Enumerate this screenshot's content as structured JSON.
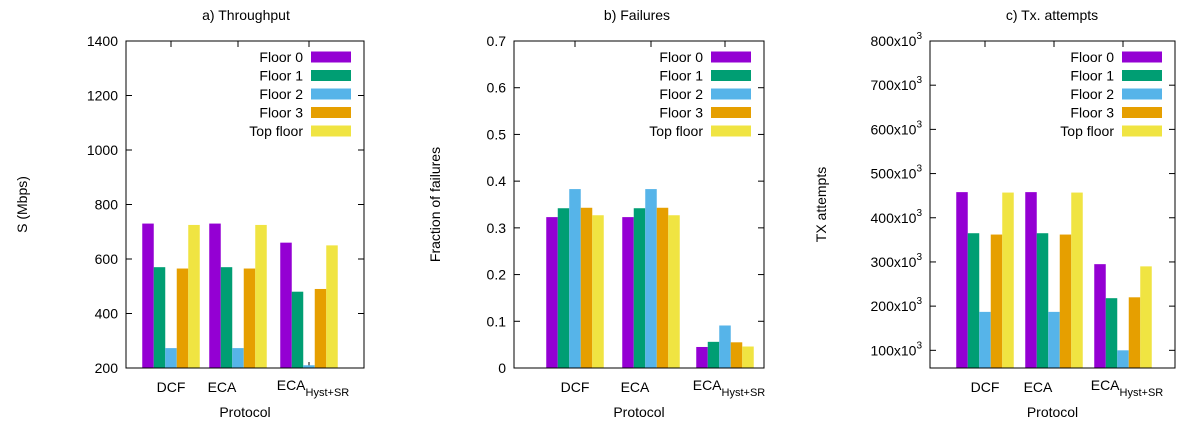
{
  "chart_data": [
    {
      "type": "bar",
      "title": "a) Throughput",
      "xlabel": "Protocol",
      "ylabel": "S (Mbps)",
      "ylim": [
        200,
        1400
      ],
      "yticks": [
        "200",
        "400",
        "600",
        "800",
        "1000",
        "1200",
        "1400"
      ],
      "categories": [
        "DCF",
        "ECA",
        "ECA_Hyst+SR"
      ],
      "legend_position": "top-right",
      "series": [
        {
          "name": "Floor 0",
          "color": "#9400d3",
          "values": [
            730,
            730,
            660
          ]
        },
        {
          "name": "Floor 1",
          "color": "#009e73",
          "values": [
            570,
            570,
            480
          ]
        },
        {
          "name": "Floor 2",
          "color": "#56b4e9",
          "values": [
            273,
            273,
            210
          ]
        },
        {
          "name": "Floor 3",
          "color": "#e69f00",
          "values": [
            565,
            565,
            490
          ]
        },
        {
          "name": "Top floor",
          "color": "#f0e442",
          "values": [
            725,
            725,
            650
          ]
        }
      ]
    },
    {
      "type": "bar",
      "title": "b) Failures",
      "xlabel": "Protocol",
      "ylabel": "Fraction of failures",
      "ylim": [
        0,
        0.7
      ],
      "yticks": [
        "0",
        "0.1",
        "0.2",
        "0.3",
        "0.4",
        "0.5",
        "0.6",
        "0.7"
      ],
      "categories": [
        "DCF",
        "ECA",
        "ECA_Hyst+SR"
      ],
      "legend_position": "top-right",
      "series": [
        {
          "name": "Floor 0",
          "color": "#9400d3",
          "values": [
            0.323,
            0.323,
            0.045
          ]
        },
        {
          "name": "Floor 1",
          "color": "#009e73",
          "values": [
            0.342,
            0.342,
            0.056
          ]
        },
        {
          "name": "Floor 2",
          "color": "#56b4e9",
          "values": [
            0.383,
            0.383,
            0.091
          ]
        },
        {
          "name": "Floor 3",
          "color": "#e69f00",
          "values": [
            0.343,
            0.343,
            0.055
          ]
        },
        {
          "name": "Top floor",
          "color": "#f0e442",
          "values": [
            0.327,
            0.327,
            0.046
          ]
        }
      ]
    },
    {
      "type": "bar",
      "title": "c) Tx. attempts",
      "xlabel": "Protocol",
      "ylabel": "TX attempts",
      "ylim": [
        60000,
        800000
      ],
      "yticks": [
        {
          "value": 100000,
          "base": "100x10",
          "exp": "3"
        },
        {
          "value": 200000,
          "base": "200x10",
          "exp": "3"
        },
        {
          "value": 300000,
          "base": "300x10",
          "exp": "3"
        },
        {
          "value": 400000,
          "base": "400x10",
          "exp": "3"
        },
        {
          "value": 500000,
          "base": "500x10",
          "exp": "3"
        },
        {
          "value": 600000,
          "base": "600x10",
          "exp": "3"
        },
        {
          "value": 700000,
          "base": "700x10",
          "exp": "3"
        },
        {
          "value": 800000,
          "base": "800x10",
          "exp": "3"
        }
      ],
      "categories": [
        "DCF",
        "ECA",
        "ECA_Hyst+SR"
      ],
      "legend_position": "top-right",
      "series": [
        {
          "name": "Floor 0",
          "color": "#9400d3",
          "values": [
            458000,
            458000,
            295000
          ]
        },
        {
          "name": "Floor 1",
          "color": "#009e73",
          "values": [
            365000,
            365000,
            218000
          ]
        },
        {
          "name": "Floor 2",
          "color": "#56b4e9",
          "values": [
            187000,
            187000,
            100000
          ]
        },
        {
          "name": "Floor 3",
          "color": "#e69f00",
          "values": [
            362000,
            362000,
            220000
          ]
        },
        {
          "name": "Top floor",
          "color": "#f0e442",
          "values": [
            457000,
            457000,
            290000
          ]
        }
      ]
    }
  ],
  "category_labels": {
    "dcf": "DCF",
    "eca": "ECA",
    "hyst_base": "ECA",
    "hyst_sub": "Hyst+SR"
  }
}
